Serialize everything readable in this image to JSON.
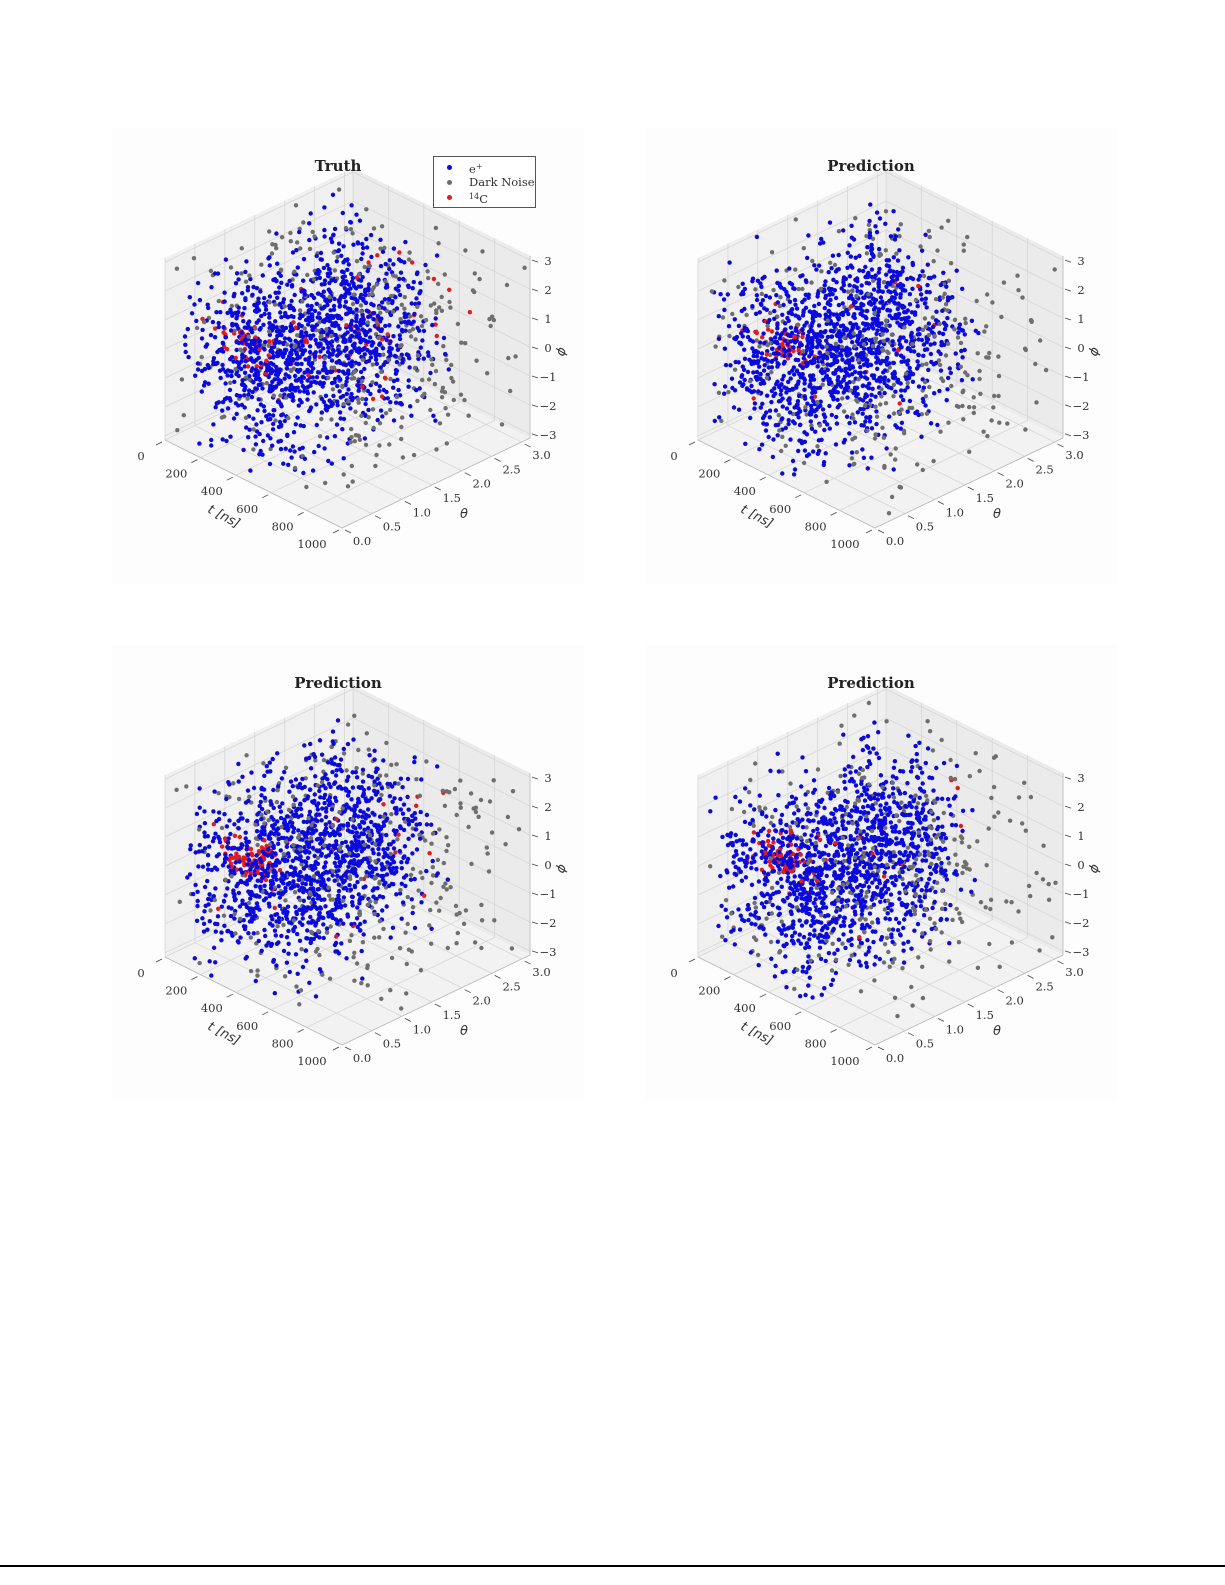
{
  "figure": {
    "panels": [
      {
        "id": "truth",
        "title": "Truth",
        "show_legend": true,
        "seed": 11,
        "red_mode": "scattered"
      },
      {
        "id": "pred1",
        "title": "Prediction",
        "show_legend": false,
        "seed": 23,
        "red_mode": "cluster"
      },
      {
        "id": "pred2",
        "title": "Prediction",
        "show_legend": false,
        "seed": 37,
        "red_mode": "cluster_more"
      },
      {
        "id": "pred3",
        "title": "Prediction",
        "show_legend": false,
        "seed": 41,
        "red_mode": "cluster_mid"
      }
    ],
    "legend": {
      "items": [
        {
          "label": "e",
          "sup_after": "+",
          "color": "#0a0adc"
        },
        {
          "label": "Dark Noise",
          "color": "#6e6e6e"
        },
        {
          "label": "C",
          "sup_before": "14",
          "color": "#e41a1c"
        }
      ]
    }
  },
  "chart_data": [
    {
      "type": "scatter",
      "title": "Truth",
      "projection": "3d",
      "xlabel": "t [ns]",
      "ylabel": "θ",
      "zlabel": "ϕ",
      "xlim": [
        0,
        1000
      ],
      "ylim": [
        0,
        3.14
      ],
      "zlim": [
        -3.14,
        3.14
      ],
      "xticks": [
        "0",
        "200",
        "400",
        "600",
        "800",
        "1000"
      ],
      "yticks": [
        "0.0",
        "0.5",
        "1.0",
        "1.5",
        "2.0",
        "2.5",
        "3.0"
      ],
      "zticks": [
        "−3",
        "−2",
        "−1",
        "0",
        "1",
        "2",
        "3"
      ],
      "legend": [
        "e⁺",
        "Dark Noise",
        "¹⁴C"
      ],
      "legend_position": "upper right",
      "grid": true,
      "series": [
        {
          "name": "e⁺",
          "color": "#0a0adc",
          "approx_count": 1300,
          "distribution": "dense cloud, t≈100–700 ns, θ 0–π, ϕ −π–π"
        },
        {
          "name": "Dark Noise",
          "color": "#6e6e6e",
          "approx_count": 350,
          "distribution": "uniform across full volume"
        },
        {
          "name": "¹⁴C",
          "color": "#e41a1c",
          "approx_count": 90,
          "distribution": "cluster near t≈150–300 ns, ϕ≈0, plus scattered points"
        }
      ]
    },
    {
      "type": "scatter",
      "title": "Prediction",
      "projection": "3d",
      "xlabel": "t [ns]",
      "ylabel": "θ",
      "zlabel": "ϕ",
      "xlim": [
        0,
        1000
      ],
      "ylim": [
        0,
        3.14
      ],
      "zlim": [
        -3.14,
        3.14
      ],
      "xticks": [
        "0",
        "200",
        "400",
        "600",
        "800",
        "1000"
      ],
      "yticks": [
        "0.0",
        "0.5",
        "1.0",
        "1.5",
        "2.0",
        "2.5",
        "3.0"
      ],
      "zticks": [
        "−3",
        "−2",
        "−1",
        "0",
        "1",
        "2",
        "3"
      ],
      "series": [
        {
          "name": "e⁺",
          "color": "#0a0adc",
          "approx_count": 1350
        },
        {
          "name": "Dark Noise",
          "color": "#6e6e6e",
          "approx_count": 330
        },
        {
          "name": "¹⁴C",
          "color": "#e41a1c",
          "approx_count": 60,
          "distribution": "tight cluster near t≈150–300 ns, ϕ≈0"
        }
      ]
    },
    {
      "type": "scatter",
      "title": "Prediction",
      "projection": "3d",
      "xlabel": "t [ns]",
      "ylabel": "θ",
      "zlabel": "ϕ",
      "xlim": [
        0,
        1000
      ],
      "ylim": [
        0,
        3.14
      ],
      "zlim": [
        -3.14,
        3.14
      ],
      "xticks": [
        "0",
        "200",
        "400",
        "600",
        "800",
        "1000"
      ],
      "yticks": [
        "0.0",
        "0.5",
        "1.0",
        "1.5",
        "2.0",
        "2.5",
        "3.0"
      ],
      "zticks": [
        "−3",
        "−2",
        "−1",
        "0",
        "1",
        "2",
        "3"
      ],
      "series": [
        {
          "name": "e⁺",
          "color": "#0a0adc",
          "approx_count": 1300
        },
        {
          "name": "Dark Noise",
          "color": "#6e6e6e",
          "approx_count": 340
        },
        {
          "name": "¹⁴C",
          "color": "#e41a1c",
          "approx_count": 100,
          "distribution": "cluster near t≈150–300 ns, ϕ≈0, some scattered"
        }
      ]
    },
    {
      "type": "scatter",
      "title": "Prediction",
      "projection": "3d",
      "xlabel": "t [ns]",
      "ylabel": "θ",
      "zlabel": "ϕ",
      "xlim": [
        0,
        1000
      ],
      "ylim": [
        0,
        3.14
      ],
      "zlim": [
        -3.14,
        3.14
      ],
      "xticks": [
        "0",
        "200",
        "400",
        "600",
        "800",
        "1000"
      ],
      "yticks": [
        "0.0",
        "0.5",
        "1.0",
        "1.5",
        "2.0",
        "2.5",
        "3.0"
      ],
      "zticks": [
        "−3",
        "−2",
        "−1",
        "0",
        "1",
        "2",
        "3"
      ],
      "series": [
        {
          "name": "e⁺",
          "color": "#0a0adc",
          "approx_count": 1330
        },
        {
          "name": "Dark Noise",
          "color": "#6e6e6e",
          "approx_count": 340
        },
        {
          "name": "¹⁴C",
          "color": "#e41a1c",
          "approx_count": 80
        }
      ]
    }
  ]
}
